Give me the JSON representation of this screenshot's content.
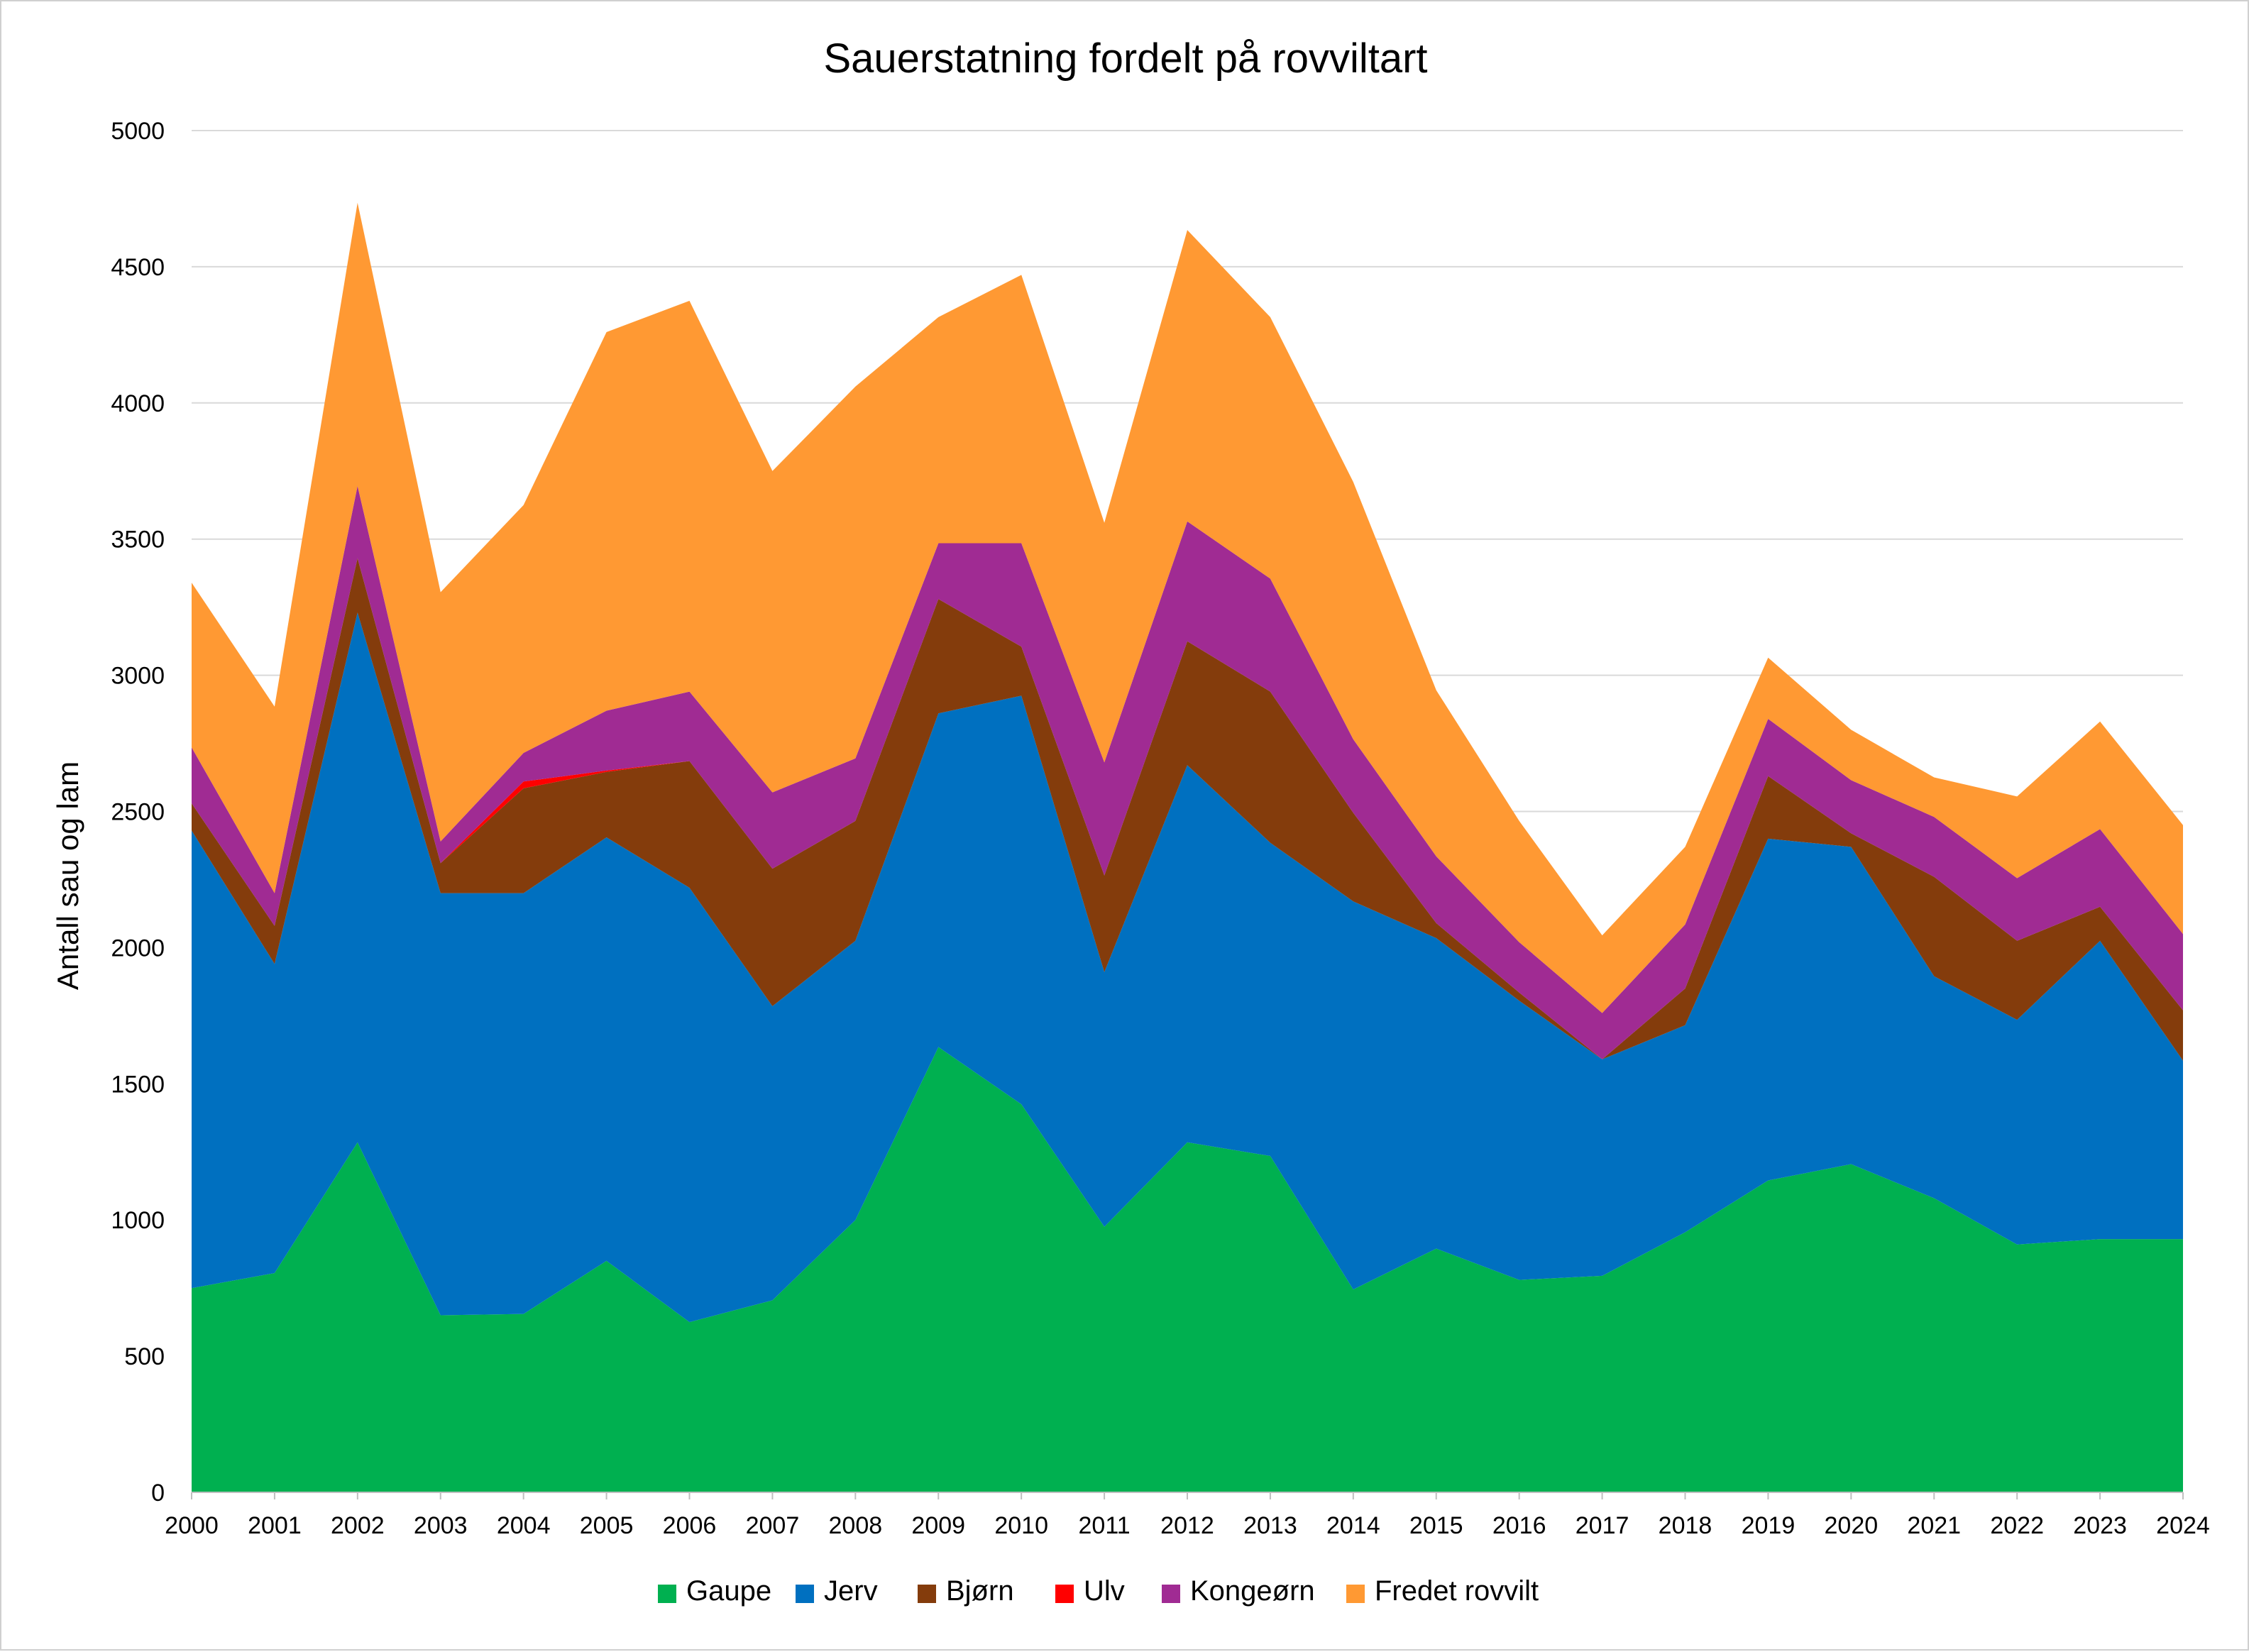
{
  "chart_data": {
    "type": "area",
    "stacked": true,
    "title": "Sauerstatning fordelt på rovviltart",
    "xlabel": "",
    "ylabel": "Antall sau og lam",
    "ylim": [
      0,
      5000
    ],
    "yticks": [
      0,
      500,
      1000,
      1500,
      2000,
      2500,
      3000,
      3500,
      4000,
      4500,
      5000
    ],
    "grid": true,
    "legend_position": "bottom",
    "x": [
      "2000",
      "2001",
      "2002",
      "2003",
      "2004",
      "2005",
      "2006",
      "2007",
      "2008",
      "2009",
      "2010",
      "2011",
      "2012",
      "2013",
      "2014",
      "2015",
      "2016",
      "2017",
      "2018",
      "2019",
      "2020",
      "2021",
      "2022",
      "2023",
      "2024"
    ],
    "series": [
      {
        "name": "Gaupe",
        "color": "#00b050",
        "values": [
          750,
          805,
          1285,
          650,
          655,
          850,
          625,
          705,
          1000,
          1635,
          1425,
          975,
          1285,
          1235,
          745,
          895,
          780,
          795,
          955,
          1145,
          1205,
          1080,
          910,
          930,
          930
        ]
      },
      {
        "name": "Jerv",
        "color": "#0070c0",
        "values": [
          1680,
          1135,
          1945,
          1550,
          1545,
          1555,
          1595,
          1080,
          1025,
          1225,
          1500,
          935,
          1385,
          1150,
          1425,
          1140,
          1025,
          795,
          760,
          1255,
          1165,
          815,
          825,
          1095,
          655
        ]
      },
      {
        "name": "Bjørn",
        "color": "#843c0c",
        "values": [
          100,
          140,
          200,
          110,
          385,
          240,
          465,
          505,
          440,
          420,
          180,
          355,
          455,
          555,
          325,
          55,
          30,
          0,
          135,
          230,
          50,
          365,
          290,
          125,
          185
        ]
      },
      {
        "name": "Ulv",
        "color": "#ff0000",
        "values": [
          0,
          0,
          0,
          0,
          25,
          5,
          0,
          0,
          0,
          0,
          0,
          0,
          0,
          0,
          0,
          0,
          0,
          0,
          0,
          0,
          0,
          0,
          0,
          0,
          0
        ]
      },
      {
        "name": "Kongeørn",
        "color": "#a02b93",
        "values": [
          205,
          120,
          265,
          80,
          105,
          220,
          255,
          280,
          230,
          205,
          380,
          415,
          440,
          415,
          270,
          245,
          185,
          170,
          235,
          210,
          195,
          220,
          230,
          285,
          280
        ]
      },
      {
        "name": "Fredet rovvilt",
        "color": "#ff9933",
        "values": [
          605,
          685,
          1040,
          915,
          910,
          1390,
          1435,
          1180,
          1365,
          830,
          985,
          880,
          1070,
          960,
          945,
          610,
          445,
          285,
          285,
          225,
          185,
          145,
          300,
          395,
          400
        ]
      }
    ]
  }
}
